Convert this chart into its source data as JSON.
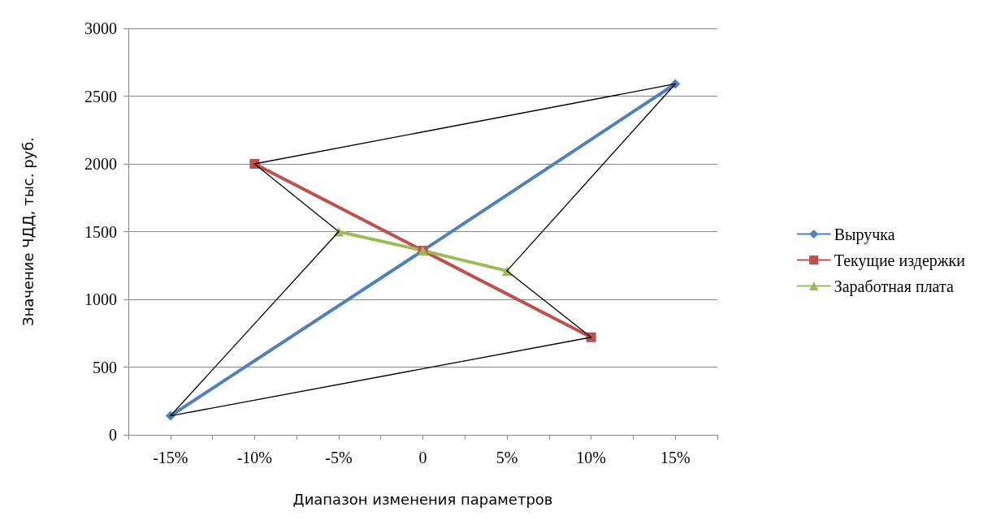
{
  "chart_data": {
    "type": "line",
    "xlabel": "Диапазон изменения параметров",
    "ylabel": "Значение ЧДД, тыс. руб.",
    "xlim": [
      -17.5,
      17.5
    ],
    "xticks": [
      {
        "value": -17.5,
        "label": null
      },
      {
        "value": -15,
        "label": "-15%"
      },
      {
        "value": -12.5,
        "label": null
      },
      {
        "value": -10,
        "label": "-10%"
      },
      {
        "value": -7.5,
        "label": null
      },
      {
        "value": -5,
        "label": "-5%"
      },
      {
        "value": -2.5,
        "label": null
      },
      {
        "value": 0,
        "label": "0"
      },
      {
        "value": 2.5,
        "label": null
      },
      {
        "value": 5,
        "label": "5%"
      },
      {
        "value": 7.5,
        "label": null
      },
      {
        "value": 10,
        "label": "10%"
      },
      {
        "value": 12.5,
        "label": null
      },
      {
        "value": 15,
        "label": "15%"
      },
      {
        "value": 17.5,
        "label": null
      }
    ],
    "ylim": [
      0,
      3000
    ],
    "yticks": [
      0,
      500,
      1000,
      1500,
      2000,
      2500,
      3000
    ],
    "grid": "y",
    "legend": "right",
    "series": [
      {
        "name": "Выручка",
        "color": "#4f81bd",
        "marker": "diamond",
        "x": [
          -15,
          0,
          15
        ],
        "values": [
          140,
          1360,
          2590
        ]
      },
      {
        "name": "Текущие издержки",
        "color": "#c0504d",
        "marker": "square",
        "x": [
          -10,
          0,
          10
        ],
        "values": [
          2000,
          1360,
          720
        ]
      },
      {
        "name": "Заработная плата",
        "color": "#9bbb59",
        "marker": "triangle",
        "x": [
          -5,
          0,
          5
        ],
        "values": [
          1500,
          1360,
          1210
        ]
      },
      {
        "color": "#000000",
        "marker": "none",
        "x": [
          -15,
          -5
        ],
        "values": [
          140,
          1500
        ]
      },
      {
        "color": "#000000",
        "marker": "none",
        "x": [
          -10,
          -5
        ],
        "values": [
          2000,
          1500
        ]
      },
      {
        "color": "#000000",
        "marker": "none",
        "x": [
          -10,
          15
        ],
        "values": [
          2000,
          2590
        ]
      },
      {
        "color": "#000000",
        "marker": "none",
        "x": [
          5,
          15
        ],
        "values": [
          1210,
          2590
        ]
      },
      {
        "color": "#000000",
        "marker": "none",
        "x": [
          5,
          10
        ],
        "values": [
          1210,
          720
        ]
      },
      {
        "color": "#000000",
        "marker": "none",
        "x": [
          -15,
          10
        ],
        "values": [
          140,
          720
        ]
      }
    ]
  }
}
